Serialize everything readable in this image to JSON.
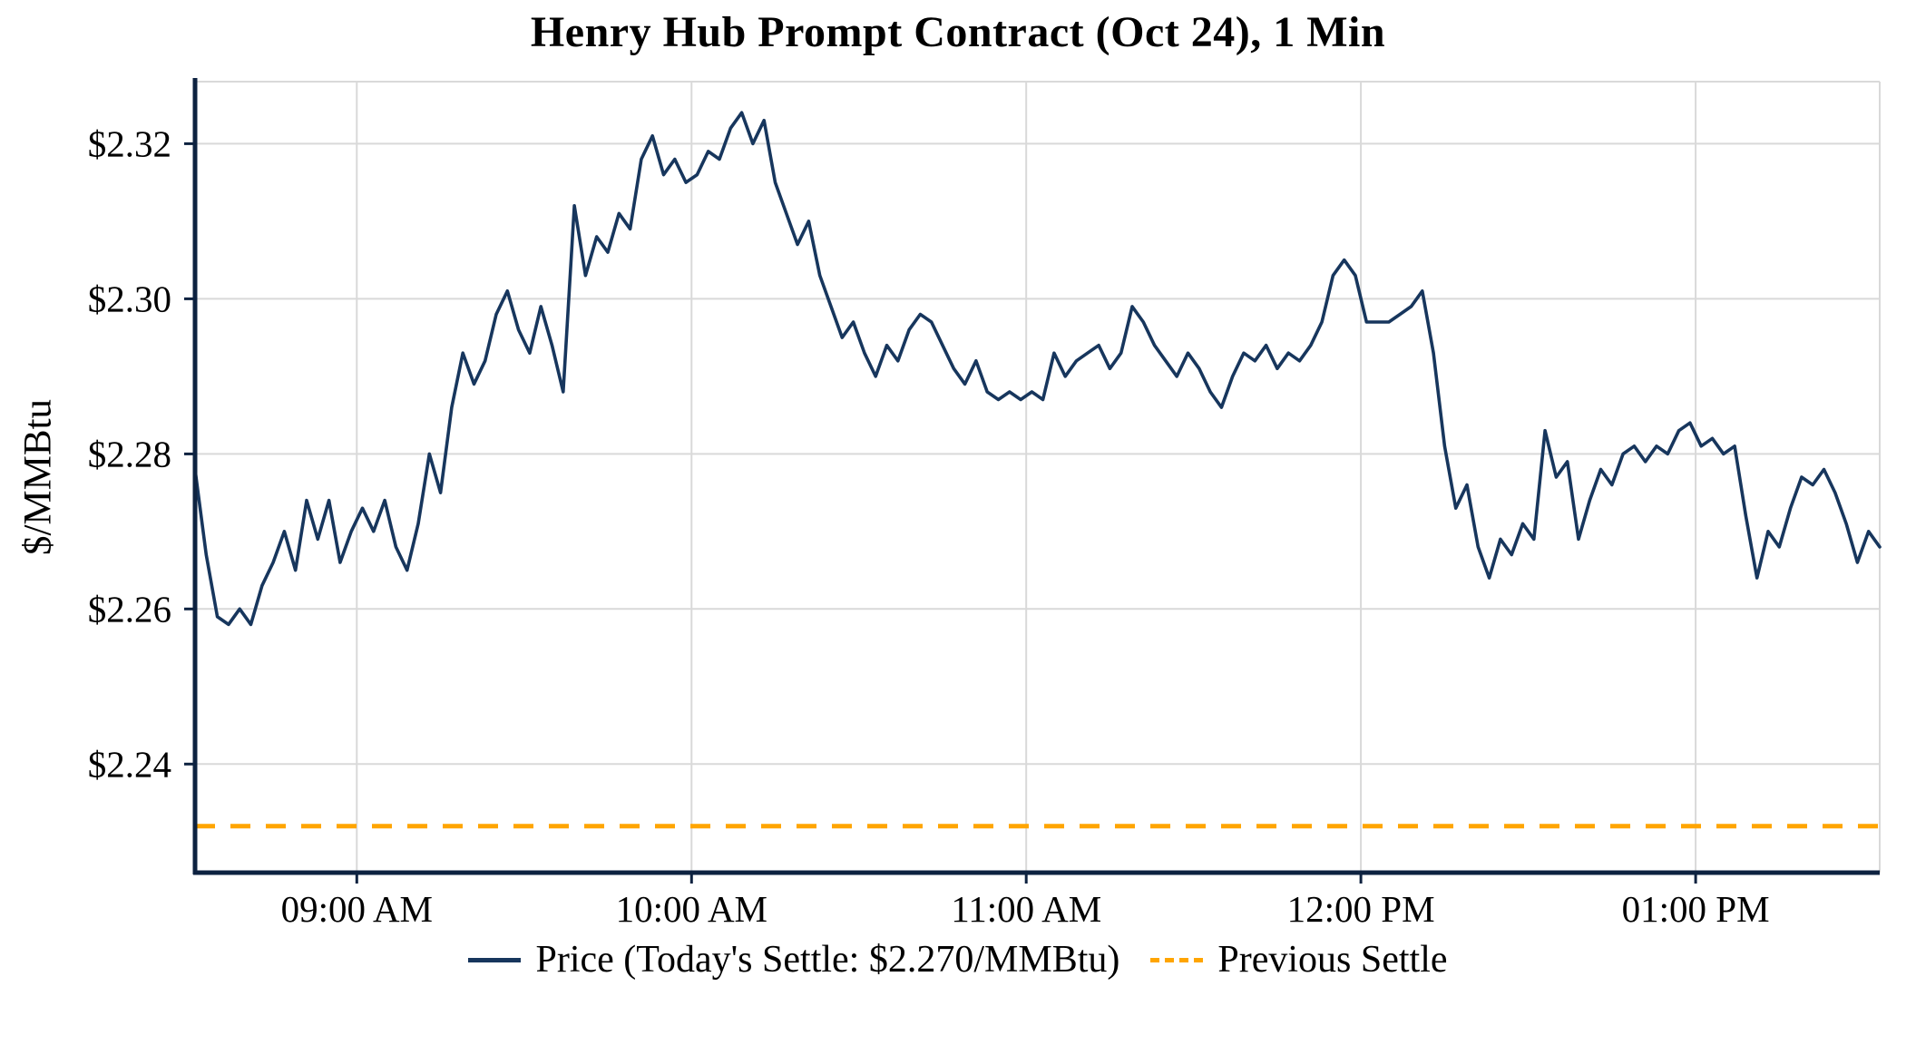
{
  "chart_data": {
    "type": "line",
    "title": "Henry Hub Prompt Contract (Oct 24), 1 Min",
    "ylabel": "$/MMBtu",
    "today_settle": 2.27,
    "previous_settle": 2.232,
    "x_unit": "minutes-since-start",
    "xlim": [
      0,
      302
    ],
    "ylim": [
      2.226,
      2.328
    ],
    "grid": true,
    "x_ticks": [
      {
        "minute": 29,
        "label": "09:00 AM"
      },
      {
        "minute": 89,
        "label": "10:00 AM"
      },
      {
        "minute": 149,
        "label": "11:00 AM"
      },
      {
        "minute": 209,
        "label": "12:00 PM"
      },
      {
        "minute": 269,
        "label": "01:00 PM"
      }
    ],
    "y_ticks": [
      2.24,
      2.26,
      2.28,
      2.3,
      2.32
    ],
    "legend": {
      "position": "bottom",
      "price_label": "Price (Today's Settle: $2.270/MMBtu)",
      "previous_settle_label": "Previous Settle"
    },
    "series": [
      {
        "name": "Price",
        "type": "line",
        "style": "solid",
        "start_minute": 0,
        "x_step_minutes": 2,
        "values": [
          2.278,
          2.267,
          2.259,
          2.258,
          2.26,
          2.258,
          2.263,
          2.266,
          2.27,
          2.265,
          2.274,
          2.269,
          2.274,
          2.266,
          2.27,
          2.273,
          2.27,
          2.274,
          2.268,
          2.265,
          2.271,
          2.28,
          2.275,
          2.286,
          2.293,
          2.289,
          2.292,
          2.298,
          2.301,
          2.296,
          2.293,
          2.299,
          2.294,
          2.288,
          2.312,
          2.303,
          2.308,
          2.306,
          2.311,
          2.309,
          2.318,
          2.321,
          2.316,
          2.318,
          2.315,
          2.316,
          2.319,
          2.318,
          2.322,
          2.324,
          2.32,
          2.323,
          2.315,
          2.311,
          2.307,
          2.31,
          2.303,
          2.299,
          2.295,
          2.297,
          2.293,
          2.29,
          2.294,
          2.292,
          2.296,
          2.298,
          2.297,
          2.294,
          2.291,
          2.289,
          2.292,
          2.288,
          2.287,
          2.288,
          2.287,
          2.288,
          2.287,
          2.293,
          2.29,
          2.292,
          2.293,
          2.294,
          2.291,
          2.293,
          2.299,
          2.297,
          2.294,
          2.292,
          2.29,
          2.293,
          2.291,
          2.288,
          2.286,
          2.29,
          2.293,
          2.292,
          2.294,
          2.291,
          2.293,
          2.292,
          2.294,
          2.297,
          2.303,
          2.305,
          2.303,
          2.297,
          2.297,
          2.297,
          2.298,
          2.299,
          2.301,
          2.293,
          2.281,
          2.273,
          2.276,
          2.268,
          2.264,
          2.269,
          2.267,
          2.271,
          2.269,
          2.283,
          2.277,
          2.279,
          2.269,
          2.274,
          2.278,
          2.276,
          2.28,
          2.281,
          2.279,
          2.281,
          2.28,
          2.283,
          2.284,
          2.281,
          2.282,
          2.28,
          2.281,
          2.272,
          2.264,
          2.27,
          2.268,
          2.273,
          2.277,
          2.276,
          2.278,
          2.275,
          2.271,
          2.266,
          2.27,
          2.268
        ]
      },
      {
        "name": "Previous Settle",
        "type": "hline",
        "style": "dashed",
        "value": 2.232
      }
    ]
  },
  "colors": {
    "price": "#17365d",
    "previous_settle": "#FFA500",
    "grid": "#d9d9d9",
    "axis": "#0d2240",
    "text": "#000000",
    "background": "#ffffff"
  }
}
